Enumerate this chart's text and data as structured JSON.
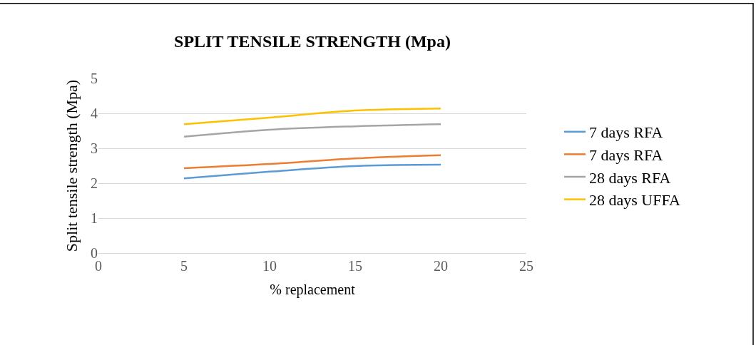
{
  "chart_data": {
    "type": "line",
    "title": "SPLIT TENSILE STRENGTH (Mpa)",
    "xlabel": "% replacement",
    "ylabel": "Split tensile strength (Mpa)",
    "x": [
      5,
      10,
      15,
      20
    ],
    "series": [
      {
        "name": "7 days RFA",
        "color": "#5b9bd5",
        "values": [
          2.14,
          2.33,
          2.49,
          2.53
        ]
      },
      {
        "name": "7 days RFA",
        "color": "#ed7d31",
        "values": [
          2.43,
          2.55,
          2.71,
          2.8
        ]
      },
      {
        "name": "28 days RFA",
        "color": "#a5a5a5",
        "values": [
          3.33,
          3.53,
          3.63,
          3.69
        ]
      },
      {
        "name": "28 days UFFA",
        "color": "#ffc000",
        "values": [
          3.69,
          3.88,
          4.08,
          4.14
        ]
      }
    ],
    "xlim": [
      0,
      25
    ],
    "xticks": [
      0,
      5,
      10,
      15,
      20,
      25
    ],
    "ylim": [
      0,
      5
    ],
    "yticks": [
      0,
      1,
      2,
      3,
      4,
      5
    ],
    "grid": "y",
    "legend": "right",
    "marker": "none",
    "line_style": "solid"
  }
}
